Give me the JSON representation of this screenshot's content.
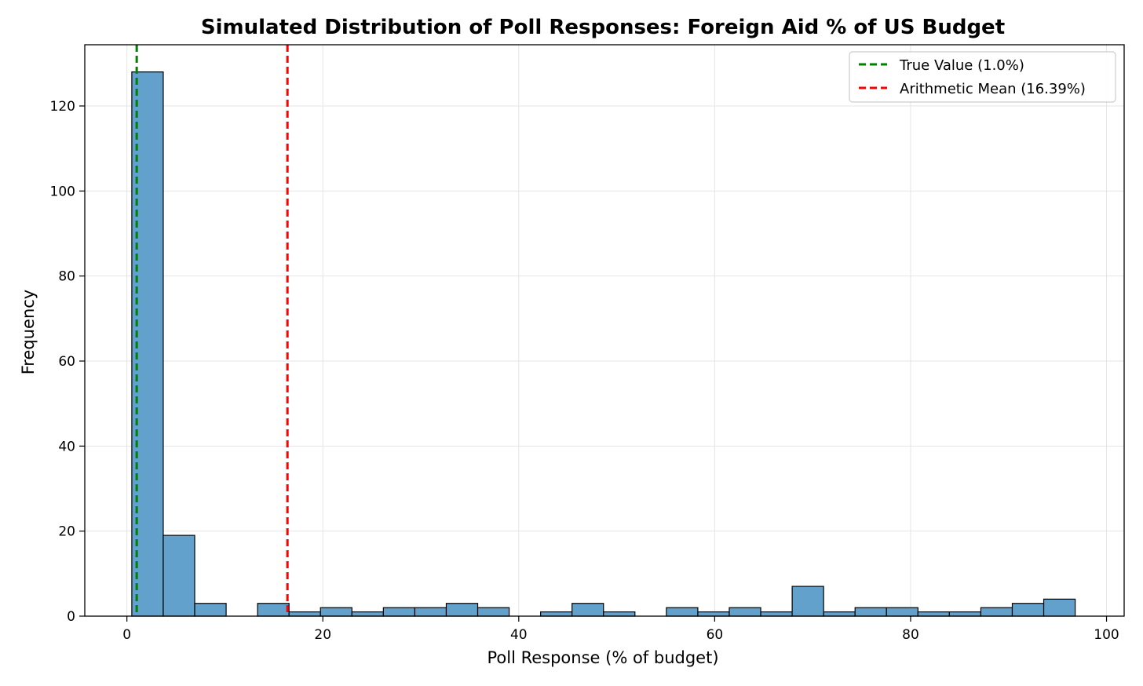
{
  "chart_data": {
    "type": "histogram",
    "title": "Simulated Distribution of Poll Responses: Foreign Aid % of US Budget",
    "xlabel": "Poll Response (% of budget)",
    "ylabel": "Frequency",
    "xlim": [
      -4.3,
      101.8
    ],
    "ylim": [
      0,
      134.4
    ],
    "xticks": [
      0,
      20,
      40,
      60,
      80,
      100
    ],
    "xtick_labels": [
      "0",
      "20",
      "40",
      "60",
      "80",
      "100"
    ],
    "yticks": [
      0,
      20,
      40,
      60,
      80,
      100,
      120
    ],
    "ytick_labels": [
      "0",
      "20",
      "40",
      "60",
      "80",
      "100",
      "120"
    ],
    "grid": true,
    "bin_width": 3.21,
    "bins": [
      {
        "start": 0.5,
        "count": 128
      },
      {
        "start": 3.71,
        "count": 19
      },
      {
        "start": 6.92,
        "count": 3
      },
      {
        "start": 10.13,
        "count": 0
      },
      {
        "start": 13.34,
        "count": 3
      },
      {
        "start": 16.55,
        "count": 1
      },
      {
        "start": 19.76,
        "count": 2
      },
      {
        "start": 22.97,
        "count": 1
      },
      {
        "start": 26.18,
        "count": 2
      },
      {
        "start": 29.39,
        "count": 2
      },
      {
        "start": 32.6,
        "count": 3
      },
      {
        "start": 35.81,
        "count": 2
      },
      {
        "start": 39.02,
        "count": 0
      },
      {
        "start": 42.23,
        "count": 1
      },
      {
        "start": 45.44,
        "count": 3
      },
      {
        "start": 48.65,
        "count": 1
      },
      {
        "start": 51.86,
        "count": 0
      },
      {
        "start": 55.07,
        "count": 2
      },
      {
        "start": 58.28,
        "count": 1
      },
      {
        "start": 61.49,
        "count": 2
      },
      {
        "start": 64.7,
        "count": 1
      },
      {
        "start": 67.91,
        "count": 7
      },
      {
        "start": 71.12,
        "count": 1
      },
      {
        "start": 74.33,
        "count": 2
      },
      {
        "start": 77.54,
        "count": 2
      },
      {
        "start": 80.75,
        "count": 1
      },
      {
        "start": 83.96,
        "count": 1
      },
      {
        "start": 87.17,
        "count": 2
      },
      {
        "start": 90.38,
        "count": 3
      },
      {
        "start": 93.59,
        "count": 4
      }
    ],
    "reference_lines": [
      {
        "name": "true-value-line",
        "x": 1.0,
        "label": "True Value (1.0%)",
        "color": "#008000",
        "style": "dashed"
      },
      {
        "name": "arithmetic-mean-line",
        "x": 16.39,
        "label": "Arithmetic Mean (16.39%)",
        "color": "#ff0000",
        "style": "dashed"
      }
    ],
    "legend_position": "top-right",
    "bar_color": "#63a1cd",
    "bar_edge_color": "#000000",
    "grid_color": "#e5e5e5"
  }
}
